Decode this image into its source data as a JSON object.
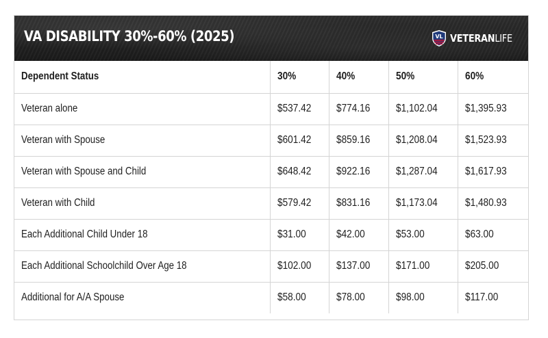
{
  "header": {
    "title": "VA DISABILITY 30%-60% (2025)",
    "logo": {
      "badge_text": "VL",
      "brand_bold": "VETERAN",
      "brand_light": "LIFE",
      "colors": {
        "navy": "#1f3a7a",
        "red": "#c8102e",
        "white": "#ffffff"
      }
    }
  },
  "table": {
    "columns": [
      "Dependent Status",
      "30%",
      "40%",
      "50%",
      "60%"
    ],
    "rows": [
      [
        "Veteran alone",
        "$537.42",
        "$774.16",
        "$1,102.04",
        "$1,395.93"
      ],
      [
        "Veteran with Spouse",
        "$601.42",
        "$859.16",
        "$1,208.04",
        "$1,523.93"
      ],
      [
        "Veteran with Spouse and Child",
        "$648.42",
        "$922.16",
        "$1,287.04",
        "$1,617.93"
      ],
      [
        "Veteran with Child",
        "$579.42",
        "$831.16",
        "$1,173.04",
        "$1,480.93"
      ],
      [
        "Each Additional Child Under 18",
        "$31.00",
        "$42.00",
        "$53.00",
        "$63.00"
      ],
      [
        "Each Additional Schoolchild Over Age 18",
        "$102.00",
        "$137.00",
        "$171.00",
        "$205.00"
      ],
      [
        "Additional for A/A Spouse",
        "$58.00",
        "$78.00",
        "$98.00",
        "$117.00"
      ]
    ]
  }
}
